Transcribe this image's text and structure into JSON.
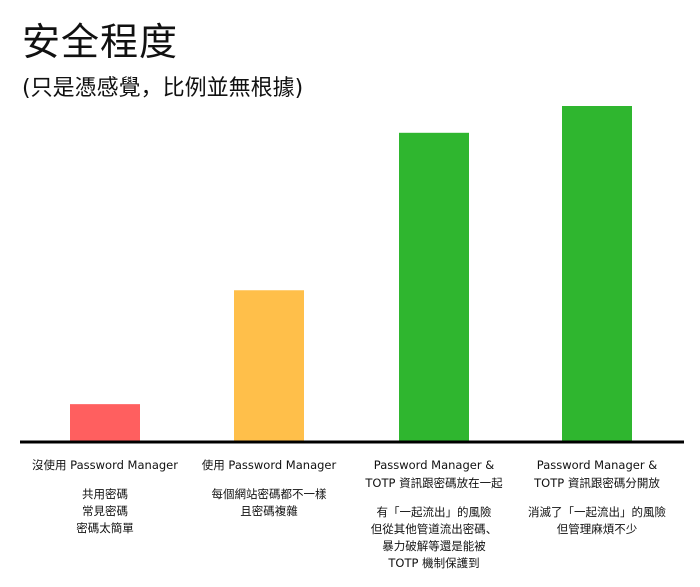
{
  "title": "安全程度",
  "subtitle": "(只是憑感覺，比例並無根據)",
  "chart_data": {
    "type": "bar",
    "title": "安全程度",
    "subtitle": "(只是憑感覺，比例並無根據)",
    "xlabel": "",
    "ylabel": "",
    "ylim": [
      0,
      100
    ],
    "grid": false,
    "legend": "none",
    "categories": [
      "沒使用 Password Manager",
      "使用 Password Manager",
      "Password Manager &\nTOTP 資訊跟密碼放在一起",
      "Password Manager &\nTOTP 資訊跟密碼分開放"
    ],
    "values": [
      11,
      45,
      92,
      100
    ],
    "colors": [
      "#ff5f5f",
      "#ffbf4a",
      "#2fb62f",
      "#2fb62f"
    ],
    "notes": [
      "共用密碼\n常見密碼\n密碼太簡單",
      "每個網站密碼都不一樣\n且密碼複雜",
      "有「一起流出」的風險\n但從其他管道流出密碼、\n暴力破解等還是能被\nTOTP 機制保護到",
      "消滅了「一起流出」的風險\n但管理麻煩不少"
    ]
  }
}
